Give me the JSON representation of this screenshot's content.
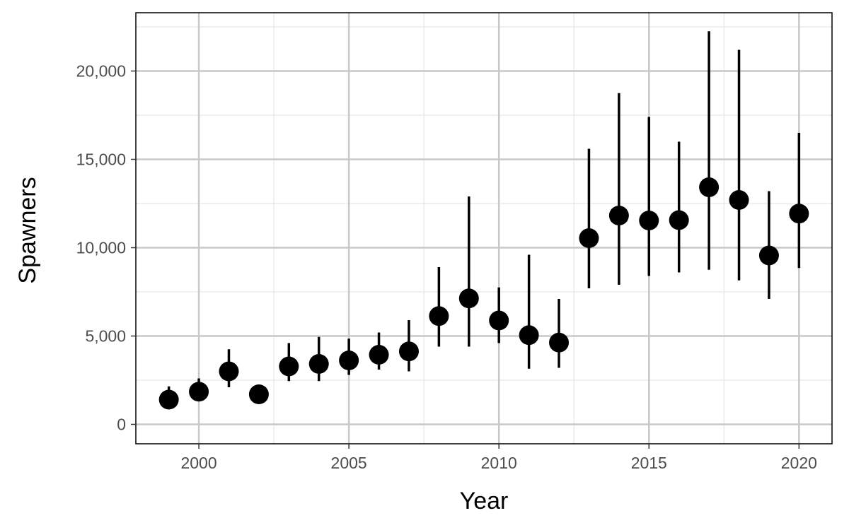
{
  "chart_data": {
    "type": "scatter",
    "xlabel": "Year",
    "ylabel": "Spawners",
    "xlim": [
      1997.9,
      2021.1
    ],
    "ylim": [
      -1100,
      23300
    ],
    "x_ticks": [
      2000,
      2005,
      2010,
      2015,
      2020
    ],
    "x_tick_labels": [
      "2000",
      "2005",
      "2010",
      "2015",
      "2020"
    ],
    "y_ticks": [
      0,
      5000,
      10000,
      15000,
      20000
    ],
    "y_tick_labels": [
      "0",
      "5,000",
      "10,000",
      "15,000",
      "20,000"
    ],
    "grid": true,
    "legend": "none",
    "colors": {
      "point": "#000000",
      "grid_major": "#c8c8c8",
      "grid_minor": "#e6e6e6",
      "panel_border": "#000000"
    },
    "series": [
      {
        "x": [
          1999,
          2000,
          2001,
          2002,
          2003,
          2004,
          2005,
          2006,
          2007,
          2008,
          2009,
          2010,
          2011,
          2012,
          2013,
          2014,
          2015,
          2016,
          2017,
          2018,
          2019,
          2020
        ],
        "y": [
          1400,
          1850,
          3000,
          1700,
          3280,
          3420,
          3620,
          3940,
          4130,
          6130,
          7130,
          5880,
          5050,
          4630,
          10540,
          11820,
          11540,
          11560,
          13420,
          12700,
          9560,
          11930
        ],
        "lower": [
          1100,
          1600,
          2100,
          1650,
          2450,
          2450,
          2800,
          3100,
          3000,
          4400,
          4400,
          4600,
          3150,
          3200,
          7700,
          7900,
          8400,
          8600,
          8750,
          8150,
          7100,
          8850
        ],
        "upper": [
          2150,
          2600,
          4250,
          1750,
          4600,
          4950,
          4850,
          5200,
          5900,
          8900,
          12900,
          7750,
          9600,
          7100,
          15600,
          18750,
          17400,
          16000,
          22250,
          21200,
          13200,
          16500
        ]
      }
    ]
  }
}
